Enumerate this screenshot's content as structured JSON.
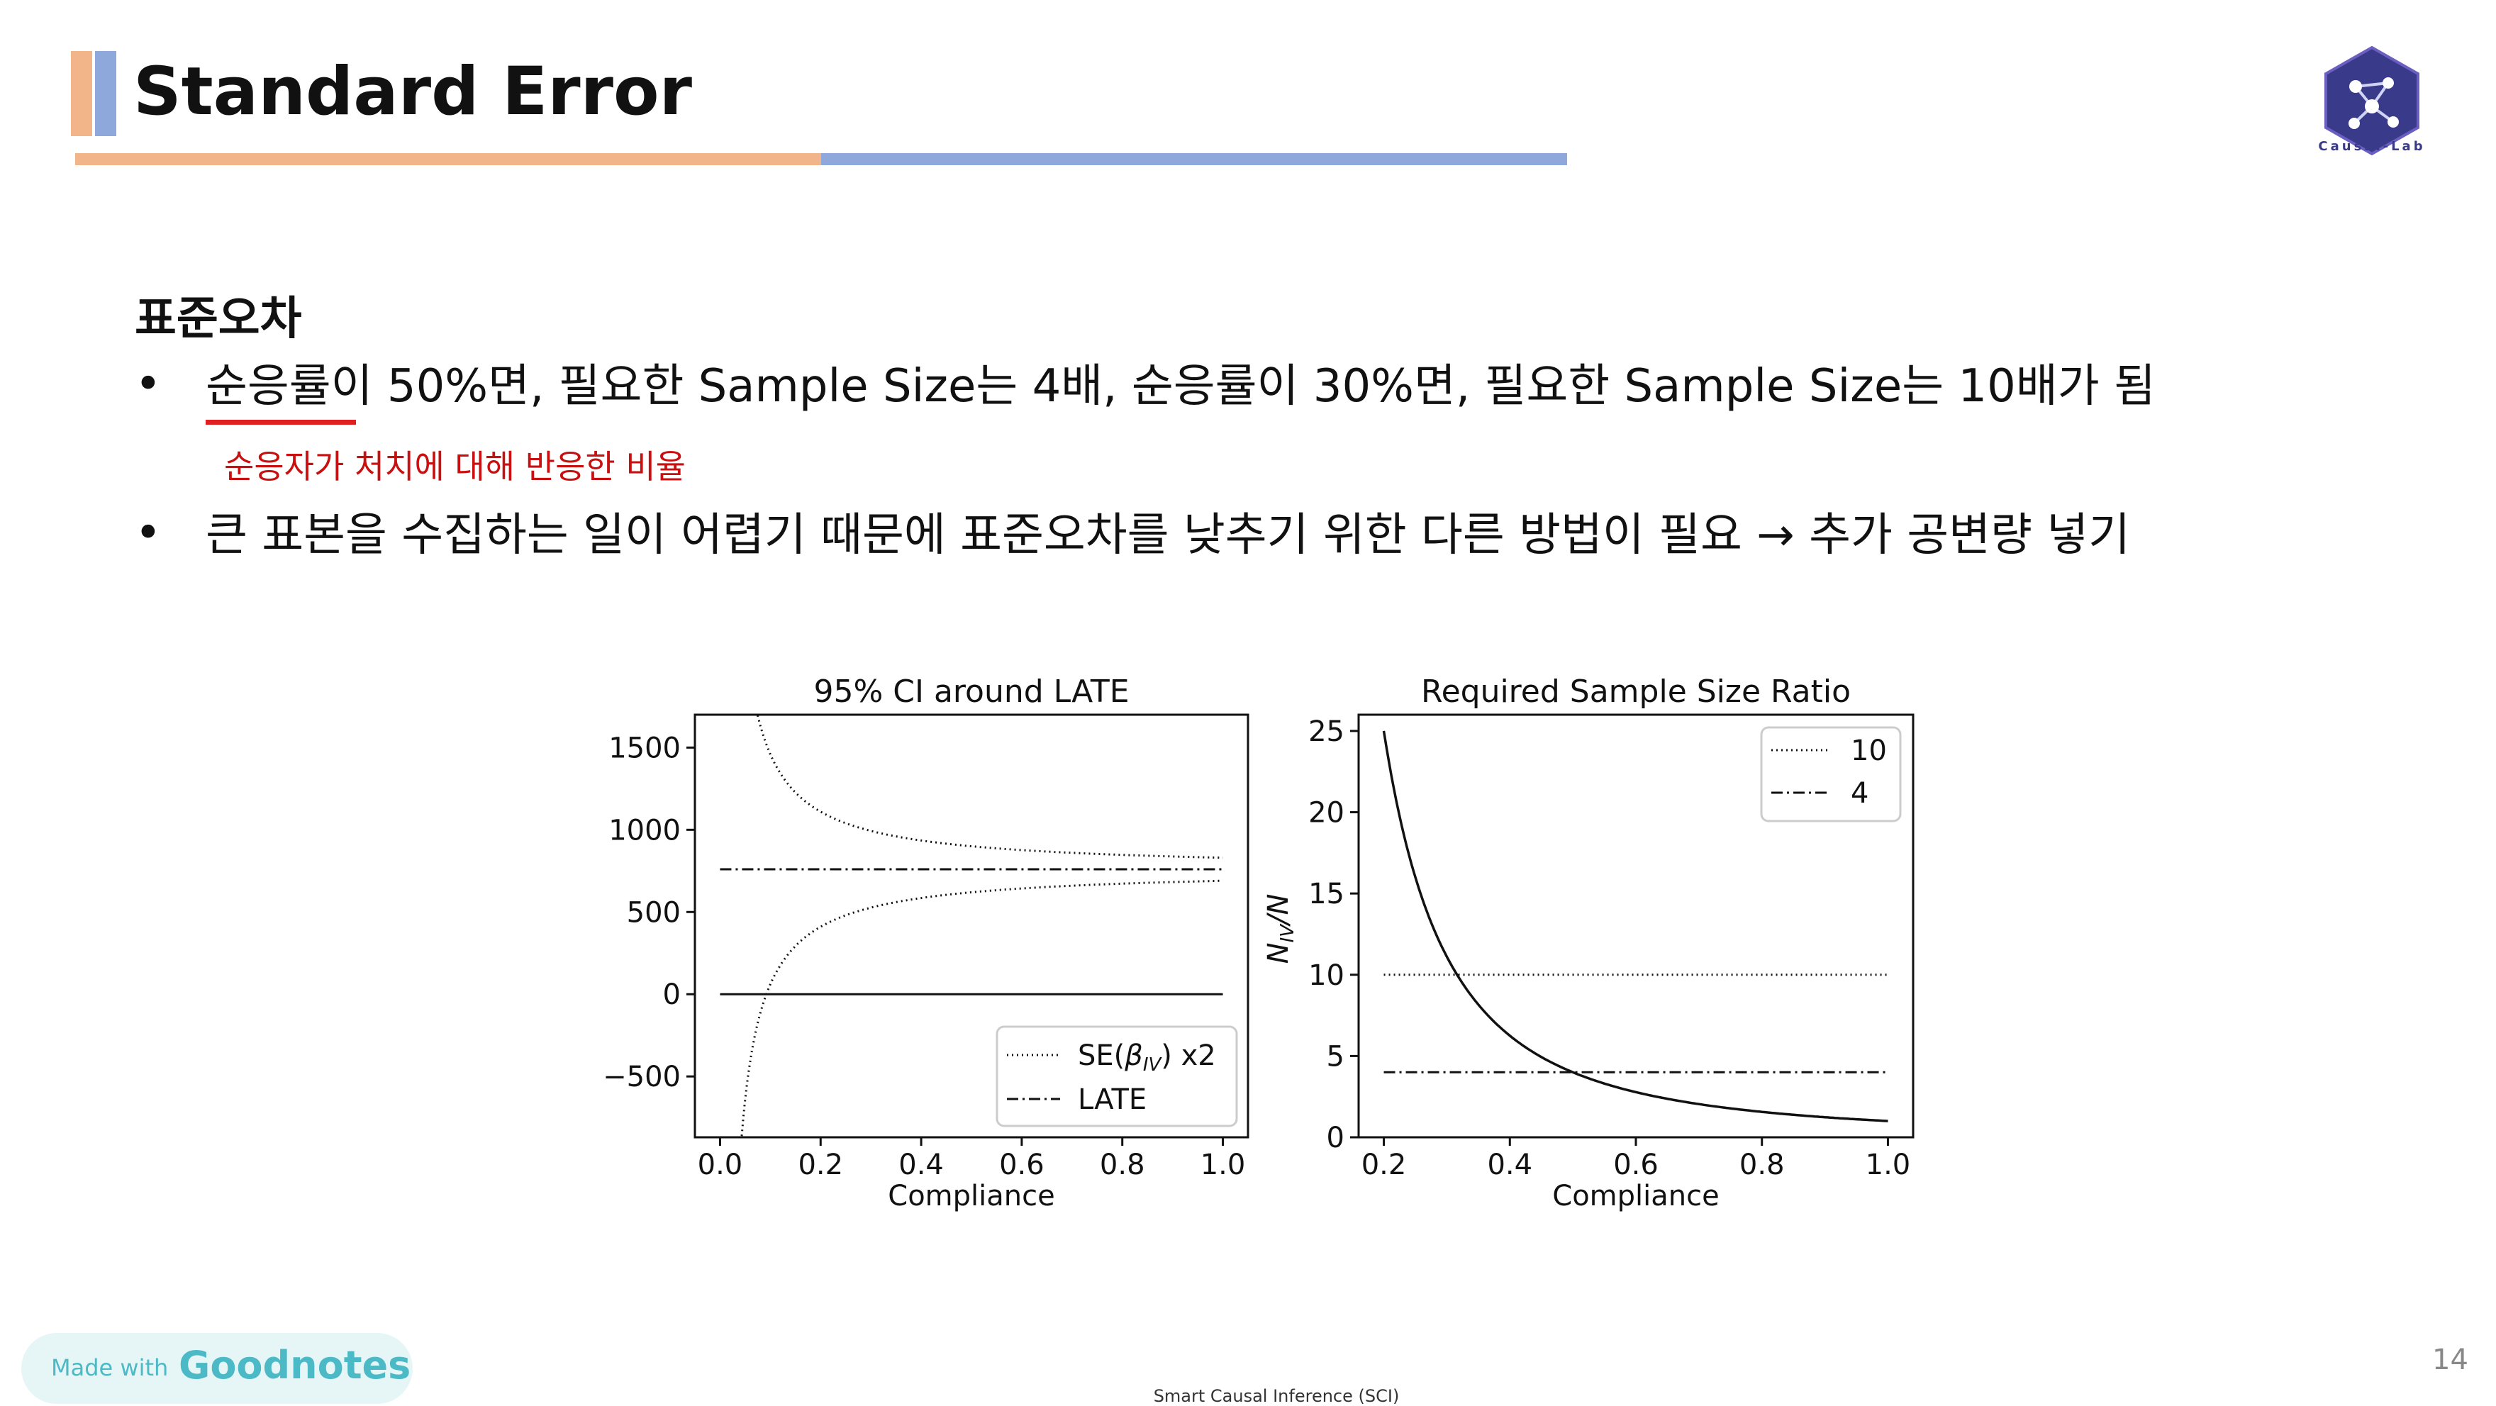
{
  "slide": {
    "title": "Standard Error",
    "logo_text": "Causal-Lab",
    "heading": "표준오차",
    "bullet1": "순응률이 50%면, 필요한 Sample Size는 4배, 순응률이 30%면, 필요한 Sample Size는 10배가 됨",
    "note": "순응자가 처치에 대해 반응한 비율",
    "bullet2": "큰 표본을 수집하는 일이 어렵기 때문에 표준오차를 낮추기 위한 다른 방법이 필요 → 추가 공변량 넣기",
    "bullet_symbol": "•",
    "page_number": "14",
    "footer": "Smart Causal Inference (SCI)",
    "goodnotes_made": "Made with",
    "goodnotes_brand": "Goodnotes",
    "colors": {
      "orange": "#f2b489",
      "blue": "#8fa8dc",
      "red": "#e02020",
      "note_red": "#c81010"
    }
  },
  "chart_data": [
    {
      "type": "line",
      "title": "95% CI around LATE",
      "xlabel": "Compliance",
      "ylabel": "",
      "xlim": [
        -0.05,
        1.05
      ],
      "ylim": [
        -870,
        1700
      ],
      "xticks": [
        "0.0",
        "0.2",
        "0.4",
        "0.6",
        "0.8",
        "1.0"
      ],
      "yticks": [
        "1500",
        "1000",
        "500",
        "0",
        "−500"
      ],
      "ytick_values": [
        1500,
        1000,
        500,
        0,
        -500
      ],
      "legend": [
        "SE(β_IV) x2",
        "LATE"
      ],
      "legend_position": "bottom-right",
      "late": 760,
      "series": [
        {
          "name": "SE(β_IV) x2",
          "style": "dotted",
          "kind": "upper-bound",
          "values": "760 + 70/x for x in [0.04,1.0]"
        },
        {
          "name": "SE(β_IV) x2",
          "style": "dotted",
          "kind": "lower-bound",
          "values": "760 − 70/x for x in [0.04,1.0]"
        },
        {
          "name": "LATE",
          "style": "dashdot",
          "values": [
            [
              0,
              760
            ],
            [
              1.0,
              760
            ]
          ]
        },
        {
          "name": "",
          "style": "solid",
          "values": [
            [
              0,
              0
            ],
            [
              1.0,
              0
            ]
          ]
        }
      ]
    },
    {
      "type": "line",
      "title": "Required Sample Size Ratio",
      "xlabel": "Compliance",
      "ylabel": "N_IV/N",
      "xlim": [
        0.16,
        1.04
      ],
      "ylim": [
        0,
        26
      ],
      "xticks": [
        "0.2",
        "0.4",
        "0.6",
        "0.8",
        "1.0"
      ],
      "yticks": [
        "0",
        "5",
        "10",
        "15",
        "20",
        "25"
      ],
      "ytick_values": [
        0,
        5,
        10,
        15,
        20,
        25
      ],
      "legend": [
        "10",
        "4"
      ],
      "legend_position": "top-right",
      "series": [
        {
          "name": "",
          "style": "solid",
          "values": "1/x^2 for x in [0.2,1.0]"
        },
        {
          "name": "10",
          "style": "dotted",
          "values": [
            [
              0.2,
              10
            ],
            [
              1.0,
              10
            ]
          ]
        },
        {
          "name": "4",
          "style": "dashdot",
          "values": [
            [
              0.2,
              4
            ],
            [
              1.0,
              4
            ]
          ]
        }
      ]
    }
  ]
}
